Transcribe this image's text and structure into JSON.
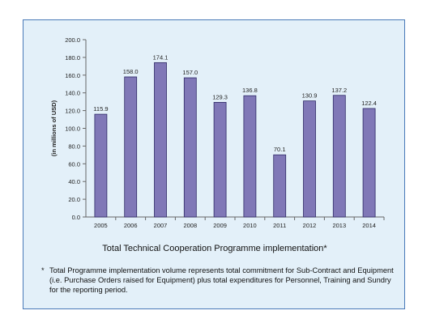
{
  "chart_data": {
    "type": "bar",
    "categories": [
      "2005",
      "2006",
      "2007",
      "2008",
      "2009",
      "2010",
      "2011",
      "2012",
      "2013",
      "2014"
    ],
    "values": [
      115.9,
      158.0,
      174.1,
      157.0,
      129.3,
      136.8,
      70.1,
      130.9,
      137.2,
      122.4
    ],
    "data_labels": [
      "115.9",
      "158.0",
      "174.1",
      "157.0",
      "129.3",
      "136.8",
      "70.1",
      "130.9",
      "137.2",
      "122.4"
    ],
    "ylim": [
      0,
      200
    ],
    "yticks": [
      0,
      20,
      40,
      60,
      80,
      100,
      120,
      140,
      160,
      180,
      200
    ],
    "ytick_labels": [
      "0.0",
      "20.0",
      "40.0",
      "60.0",
      "80.0",
      "100.0",
      "120.0",
      "140.0",
      "160.0",
      "180.0",
      "200.0"
    ],
    "ylabel": "(in millions of USD)",
    "xlabel": "",
    "title": "Total Technical Cooperation Programme implementation*",
    "grid": false,
    "legend": "none",
    "bar_color": "#8078b7",
    "bar_edge_color": "#2e2a66",
    "background_color": "#e3f0f9"
  },
  "footnote": {
    "marker": "*",
    "text": "Total Programme implementation volume represents total commitment for Sub-Contract and Equipment (i.e. Purchase Orders raised for Equipment) plus total expenditures for Personnel, Training and Sundry for the reporting period."
  }
}
